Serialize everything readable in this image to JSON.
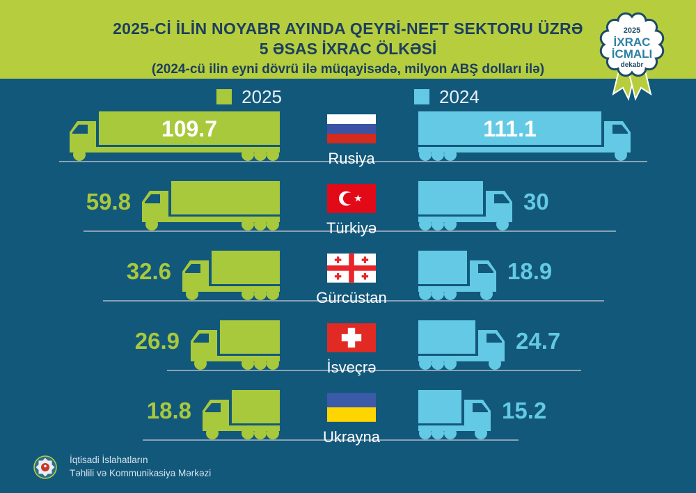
{
  "header": {
    "title_line1": "2025-Cİ İLİN NOYABR AYINDA QEYRİ-NEFT SEKTORU ÜZRƏ",
    "title_line2": "5 ƏSAS İXRAC ÖLKƏSİ",
    "subtitle": "(2024-cü ilin eyni dövrü ilə müqayisədə, milyon ABŞ dolları ilə)"
  },
  "badge": {
    "year": "2025",
    "title_line1": "İXRAC",
    "title_line2": "İCMALI",
    "month": "dekabr"
  },
  "legend": {
    "items": [
      {
        "label": "2025",
        "color": "#a9c93c"
      },
      {
        "label": "2024",
        "color": "#63c9e4"
      }
    ]
  },
  "chart_data": {
    "type": "bar",
    "title": "2025-ci ilin noyabr ayında qeyri-neft sektoru üzrə 5 əsas ixrac ölkəsi",
    "subtitle": "2024-cü ilin eyni dövrü ilə müqayisədə",
    "unit": "milyon ABŞ dolları",
    "categories": [
      "Rusiya",
      "Türkiyə",
      "Gürcüstan",
      "İsveçrə",
      "Ukrayna"
    ],
    "series": [
      {
        "name": "2025",
        "color": "#a9c93c",
        "values": [
          109.7,
          59.8,
          32.6,
          26.9,
          18.8
        ]
      },
      {
        "name": "2024",
        "color": "#63c9e4",
        "values": [
          111.1,
          30,
          18.9,
          24.7,
          15.2
        ]
      }
    ],
    "countries": [
      {
        "name": "Rusiya",
        "flag": "russia",
        "v2025": 109.7,
        "v2024": 111.1
      },
      {
        "name": "Türkiyə",
        "flag": "turkiye",
        "v2025": 59.8,
        "v2024": 30
      },
      {
        "name": "Gürcüstan",
        "flag": "georgia",
        "v2025": 32.6,
        "v2024": 18.9
      },
      {
        "name": "İsveçrə",
        "flag": "switzerland",
        "v2025": 26.9,
        "v2024": 24.7
      },
      {
        "name": "Ukrayna",
        "flag": "ukraine",
        "v2025": 18.8,
        "v2024": 15.2
      }
    ],
    "legend_position": "top",
    "grid": false
  },
  "footer": {
    "org_line1": "İqtisadi İslahatların",
    "org_line2": "Təhlili və Kommunikasiya Mərkəzi"
  },
  "colors": {
    "background": "#12587b",
    "header_bg": "#b6ce3d",
    "green": "#a9c93c",
    "blue": "#63c9e4",
    "title_text": "#1c3e5f",
    "road": "#8aa2b5"
  }
}
